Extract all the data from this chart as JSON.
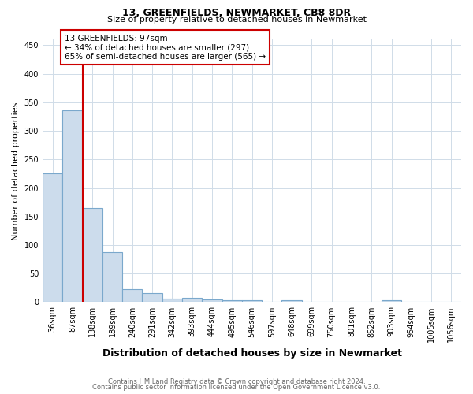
{
  "title": "13, GREENFIELDS, NEWMARKET, CB8 8DR",
  "subtitle": "Size of property relative to detached houses in Newmarket",
  "xlabel": "Distribution of detached houses by size in Newmarket",
  "ylabel": "Number of detached properties",
  "bar_color": "#ccdcec",
  "bar_edge_color": "#7aa8cc",
  "grid_color": "#d0dce8",
  "annotation_box_color": "#cc0000",
  "annotation_line_color": "#cc0000",
  "footnote1": "Contains HM Land Registry data © Crown copyright and database right 2024.",
  "footnote2": "Contains public sector information licensed under the Open Government Licence v3.0.",
  "categories": [
    "36sqm",
    "87sqm",
    "138sqm",
    "189sqm",
    "240sqm",
    "291sqm",
    "342sqm",
    "393sqm",
    "444sqm",
    "495sqm",
    "546sqm",
    "597sqm",
    "648sqm",
    "699sqm",
    "750sqm",
    "801sqm",
    "852sqm",
    "903sqm",
    "954sqm",
    "1005sqm",
    "1056sqm"
  ],
  "values": [
    226,
    336,
    165,
    88,
    22,
    16,
    6,
    8,
    5,
    4,
    3,
    0,
    4,
    0,
    0,
    0,
    0,
    3,
    0,
    0,
    0
  ],
  "property_bin_index": 1,
  "annotation_line1": "13 GREENFIELDS: 97sqm",
  "annotation_line2": "← 34% of detached houses are smaller (297)",
  "annotation_line3": "65% of semi-detached houses are larger (565) →",
  "ylim_max": 460,
  "yticks": [
    0,
    50,
    100,
    150,
    200,
    250,
    300,
    350,
    400,
    450
  ],
  "title_fontsize": 9,
  "subtitle_fontsize": 8,
  "ylabel_fontsize": 8,
  "xlabel_fontsize": 9,
  "tick_fontsize": 7,
  "annot_fontsize": 7.5,
  "footnote_color": "#666666",
  "footnote_fontsize": 6
}
